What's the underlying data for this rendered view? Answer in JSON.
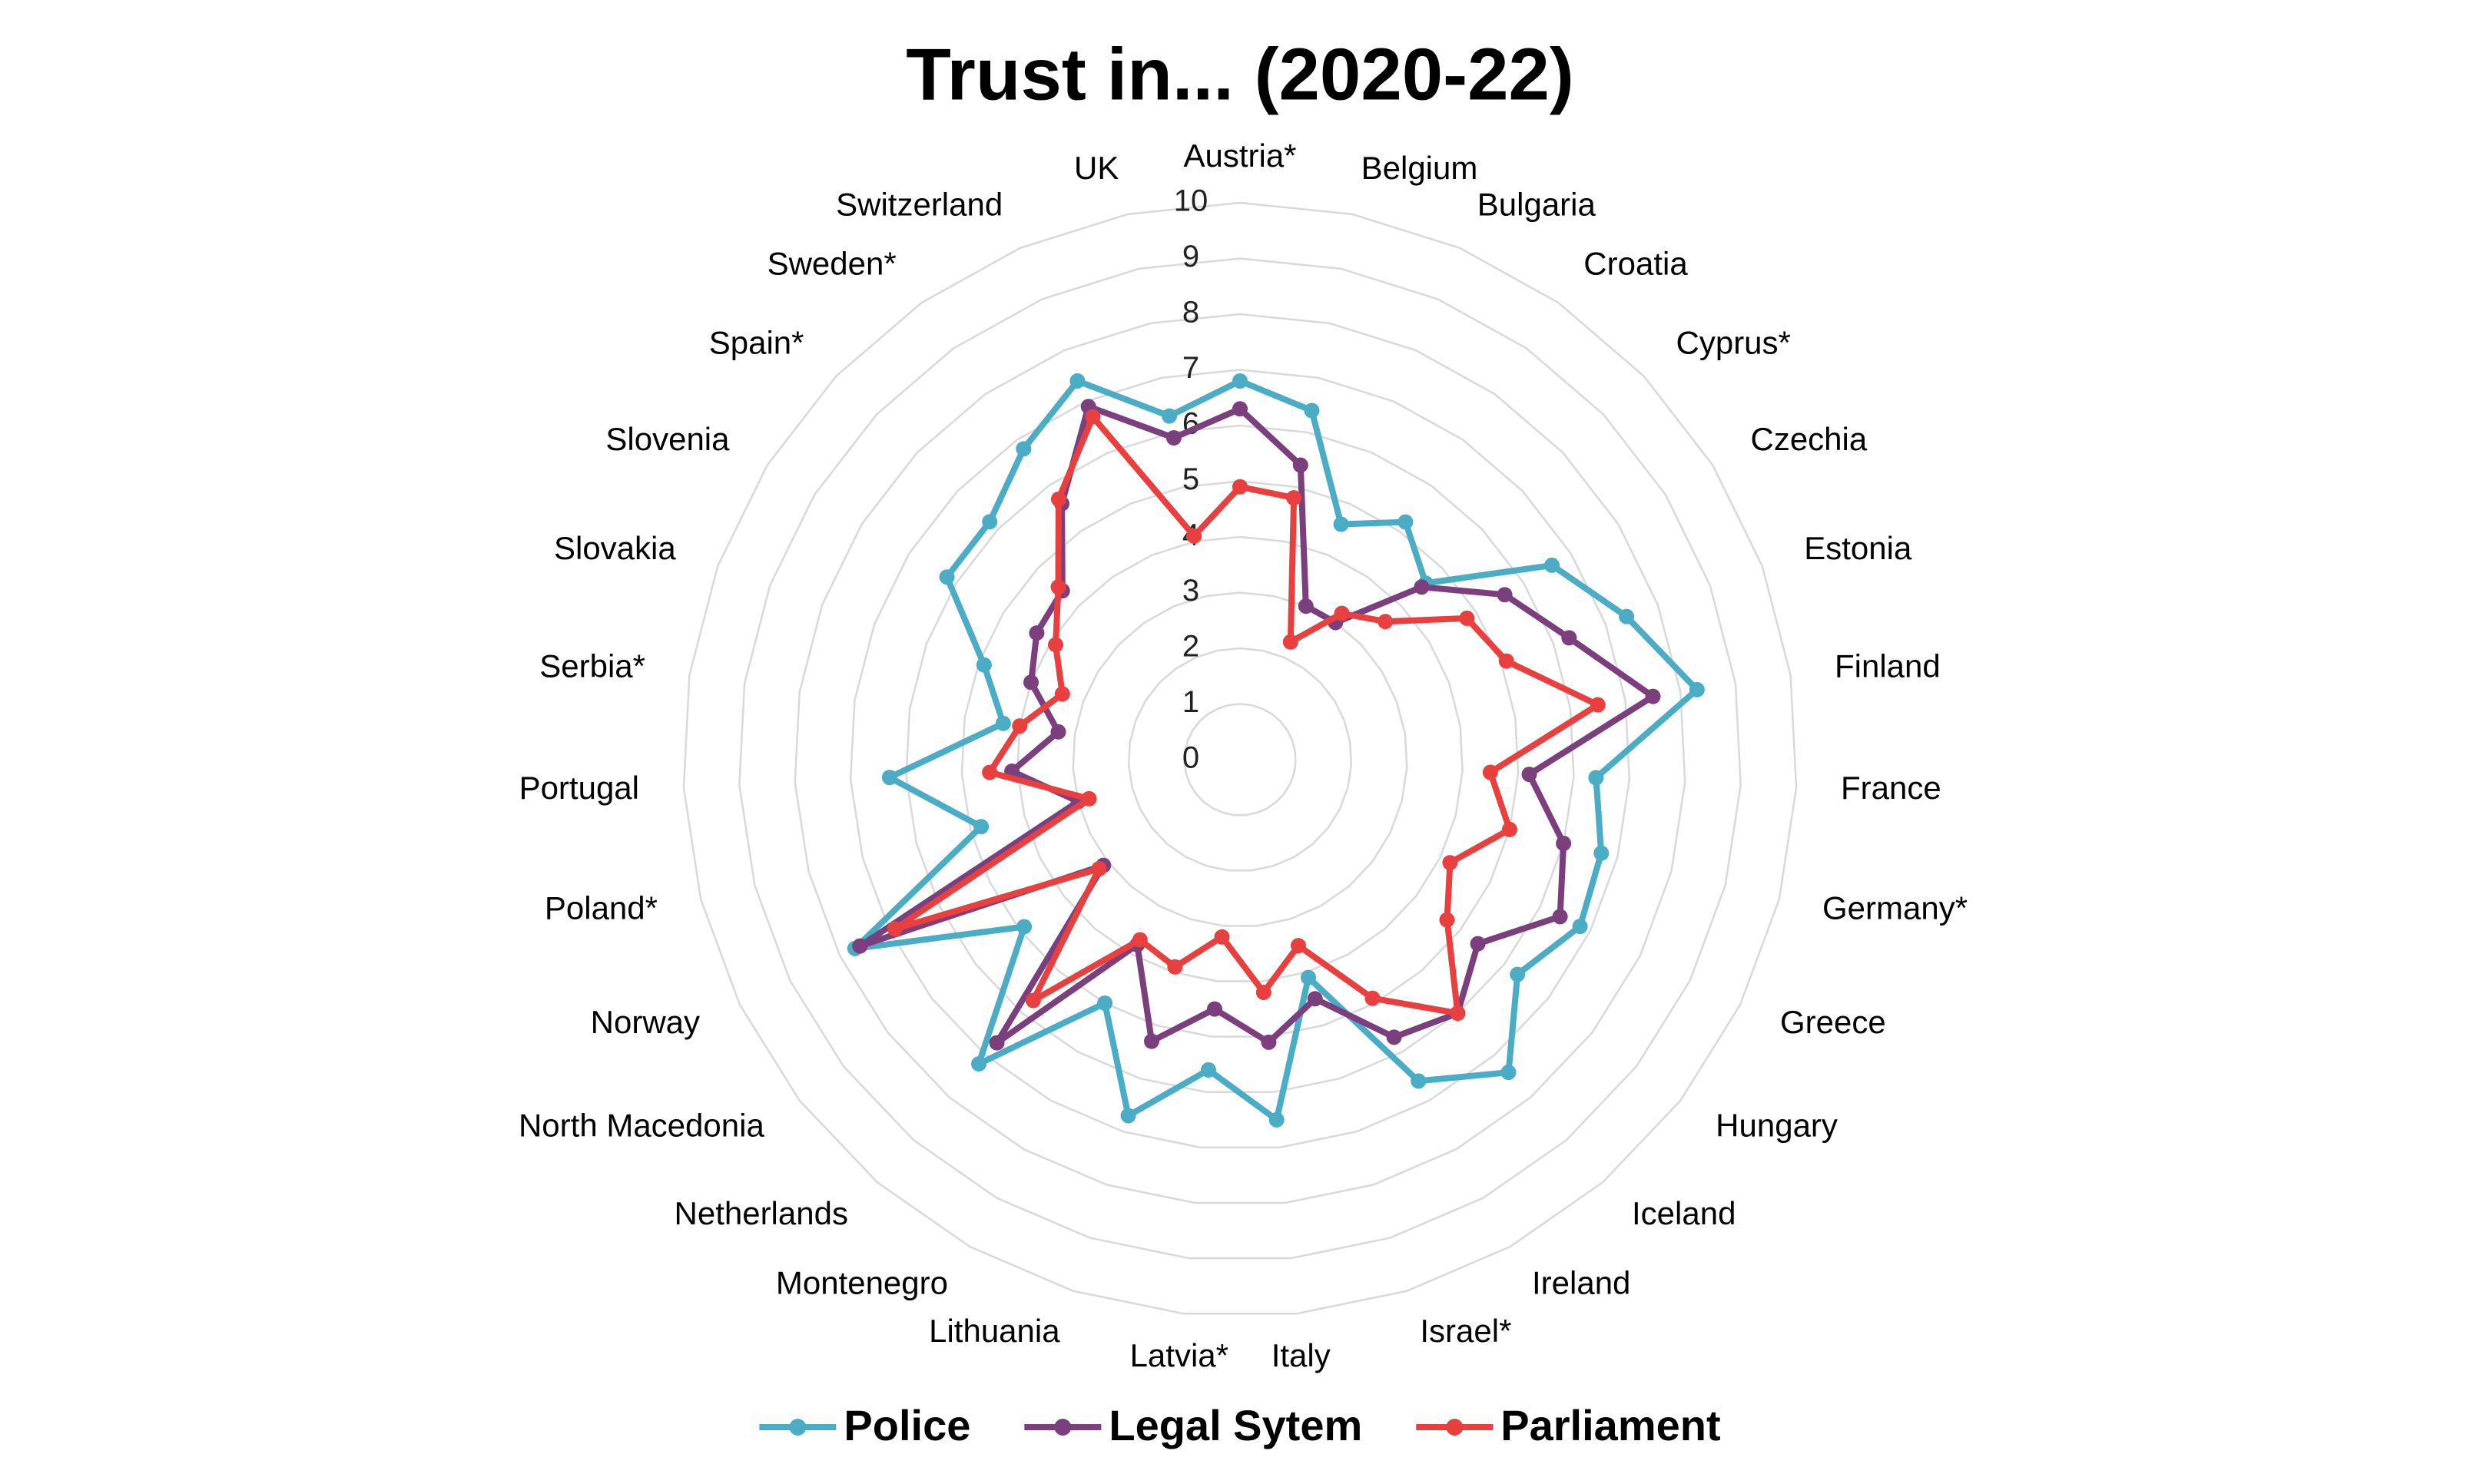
{
  "chart_data": {
    "type": "radar",
    "title": "Trust in... (2020-22)",
    "categories": [
      "Austria*",
      "Belgium",
      "Bulgaria",
      "Croatia",
      "Cyprus*",
      "Czechia",
      "Estonia",
      "Finland",
      "France",
      "Germany*",
      "Greece",
      "Hungary",
      "Iceland",
      "Ireland",
      "Israel*",
      "Italy",
      "Latvia*",
      "Lithuania",
      "Montenegro",
      "Netherlands",
      "North Macedonia",
      "Norway",
      "Poland*",
      "Portugal",
      "Serbia*",
      "Slovakia",
      "Slovenia",
      "Spain*",
      "Sweden*",
      "Switzerland",
      "UK"
    ],
    "series": [
      {
        "name": "Police",
        "color": "#4bacc6",
        "values": [
          6.8,
          6.4,
          4.6,
          5.2,
          4.6,
          6.6,
          7.4,
          8.3,
          6.4,
          6.7,
          6.8,
          6.3,
          7.4,
          6.6,
          4.1,
          6.5,
          5.6,
          6.7,
          5.0,
          7.2,
          4.9,
          7.7,
          4.8,
          6.3,
          4.3,
          4.9,
          6.2,
          6.2,
          6.8,
          7.4,
          6.3
        ]
      },
      {
        "name": "Legal Sytem",
        "color": "#7b3f7e",
        "values": [
          6.3,
          5.4,
          3.0,
          3.0,
          4.5,
          5.6,
          6.3,
          7.5,
          5.2,
          6.0,
          6.4,
          5.4,
          6.0,
          5.7,
          4.5,
          5.1,
          4.5,
          5.3,
          3.8,
          6.7,
          3.1,
          7.6,
          3.0,
          4.1,
          3.3,
          4.0,
          4.3,
          4.4,
          5.6,
          6.9,
          5.9
        ]
      },
      {
        "name": "Parliament",
        "color": "#e8403f",
        "values": [
          4.9,
          4.8,
          2.3,
          3.2,
          3.6,
          4.8,
          5.1,
          6.5,
          4.5,
          5.0,
          4.2,
          4.7,
          6.0,
          4.9,
          3.5,
          4.2,
          3.2,
          3.9,
          3.7,
          5.7,
          3.2,
          6.9,
          2.8,
          4.5,
          4.0,
          3.4,
          3.9,
          4.5,
          5.7,
          6.7,
          4.1
        ]
      }
    ],
    "rlim": [
      0,
      10
    ],
    "rticks": [
      0,
      1,
      2,
      3,
      4,
      5,
      6,
      7,
      8,
      9,
      10
    ],
    "grid": true,
    "legend": "bottom"
  }
}
